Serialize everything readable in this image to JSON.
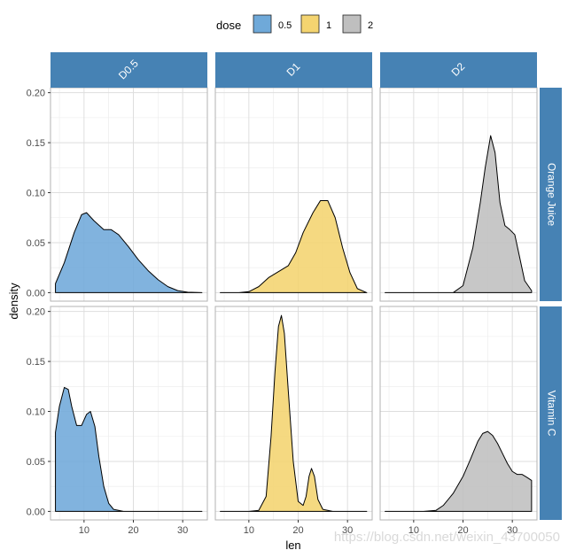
{
  "chart_data": {
    "type": "area",
    "xlabel": "len",
    "ylabel": "density",
    "xlim": [
      3.2,
      35
    ],
    "ylim": [
      -0.0085,
      0.205
    ],
    "x_ticks": [
      10,
      20,
      30
    ],
    "y_ticks": [
      0.0,
      0.05,
      0.1,
      0.15,
      0.2
    ],
    "x_tick_labels": [
      "10",
      "20",
      "30"
    ],
    "y_tick_labels": [
      "0.00",
      "0.05",
      "0.10",
      "0.15",
      "0.20"
    ],
    "grid": true,
    "legend": {
      "title": "dose",
      "position": "top",
      "entries": [
        {
          "label": "0.5",
          "color": "#6FA9D9"
        },
        {
          "label": "1",
          "color": "#F4D470"
        },
        {
          "label": "2",
          "color": "#BFBFBF"
        }
      ]
    },
    "facet_cols": [
      "D0.5",
      "D1",
      "D2"
    ],
    "facet_rows": [
      "Orange Juice",
      "Vitamin C"
    ],
    "strip_color": "#4682B4",
    "panels": [
      {
        "row": 0,
        "col": 0,
        "dose": "0.5",
        "range": [
          4.2,
          33.9
        ],
        "x": [
          4.2,
          6,
          8,
          9.5,
          10.5,
          12,
          14,
          15.5,
          17,
          19,
          21,
          23,
          25,
          27,
          29,
          31,
          33.9
        ],
        "y": [
          0.009,
          0.03,
          0.06,
          0.078,
          0.08,
          0.072,
          0.063,
          0.063,
          0.058,
          0.046,
          0.033,
          0.022,
          0.013,
          0.006,
          0.002,
          0.0005,
          0.0
        ]
      },
      {
        "row": 0,
        "col": 1,
        "dose": "1",
        "range": [
          4.2,
          33.9
        ],
        "x": [
          4.2,
          8,
          10,
          12,
          14,
          16,
          18,
          19.5,
          21,
          23,
          24.5,
          26,
          27.5,
          29,
          30.5,
          32,
          33.9
        ],
        "y": [
          0.0,
          0.0,
          0.001,
          0.006,
          0.015,
          0.021,
          0.027,
          0.04,
          0.06,
          0.08,
          0.092,
          0.092,
          0.075,
          0.045,
          0.02,
          0.004,
          0.0
        ]
      },
      {
        "row": 0,
        "col": 2,
        "dose": "2",
        "range": [
          4.2,
          33.9
        ],
        "x": [
          4.2,
          15,
          18,
          20,
          22,
          23.5,
          24.5,
          25.6,
          26.5,
          27.5,
          28.5,
          29.5,
          30.5,
          31.5,
          32.5,
          33.9
        ],
        "y": [
          0.0,
          0.0,
          0.0,
          0.007,
          0.045,
          0.09,
          0.125,
          0.157,
          0.14,
          0.09,
          0.067,
          0.063,
          0.058,
          0.035,
          0.012,
          0.002
        ]
      },
      {
        "row": 1,
        "col": 0,
        "dose": "0.5",
        "range": [
          4.2,
          33.9
        ],
        "x": [
          4.2,
          5,
          6,
          6.8,
          7.5,
          8.5,
          9.5,
          10.5,
          11.3,
          12.2,
          13,
          14,
          15,
          16,
          18,
          20,
          24,
          33.9
        ],
        "y": [
          0.079,
          0.105,
          0.124,
          0.122,
          0.105,
          0.086,
          0.086,
          0.097,
          0.1,
          0.085,
          0.055,
          0.025,
          0.008,
          0.002,
          0.0,
          0.0,
          0.0,
          0.0
        ]
      },
      {
        "row": 1,
        "col": 1,
        "dose": "1",
        "range": [
          4.2,
          33.9
        ],
        "x": [
          4.2,
          10,
          12,
          13.5,
          14.5,
          15.3,
          16,
          16.6,
          17.2,
          18,
          19,
          20,
          21,
          21.6,
          22.2,
          22.7,
          23.3,
          24,
          25,
          27,
          33.9
        ],
        "y": [
          0.0,
          0.0,
          0.001,
          0.015,
          0.075,
          0.14,
          0.185,
          0.196,
          0.178,
          0.12,
          0.05,
          0.01,
          0.006,
          0.015,
          0.035,
          0.043,
          0.035,
          0.012,
          0.002,
          0.0,
          0.0
        ]
      },
      {
        "row": 1,
        "col": 2,
        "dose": "2",
        "range": [
          4.2,
          33.9
        ],
        "x": [
          4.2,
          12,
          14.5,
          16,
          18,
          20,
          21.5,
          23,
          24,
          25,
          26,
          27,
          28,
          29,
          30,
          31,
          32,
          33,
          33.9
        ],
        "y": [
          0.0,
          0.0,
          0.001,
          0.006,
          0.018,
          0.035,
          0.052,
          0.07,
          0.078,
          0.08,
          0.076,
          0.068,
          0.058,
          0.048,
          0.04,
          0.037,
          0.037,
          0.034,
          0.031
        ]
      }
    ]
  },
  "watermark": "https://blog.csdn.net/weixin_43700050"
}
